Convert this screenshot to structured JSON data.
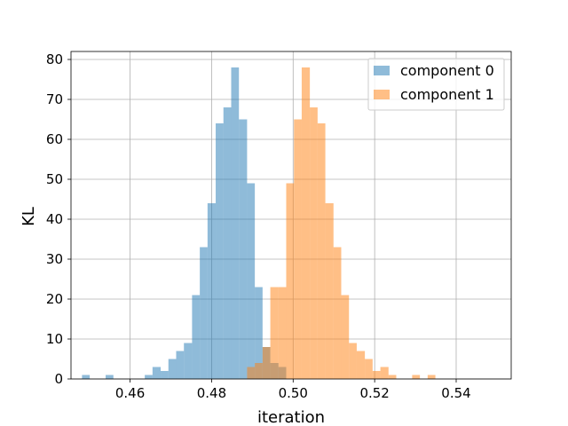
{
  "chart_data": {
    "type": "histogram",
    "title": "",
    "xlabel": "iteration",
    "ylabel": "KL",
    "xlim": [
      0.4455,
      0.5535
    ],
    "ylim": [
      0,
      82
    ],
    "xticks": [
      0.46,
      0.48,
      0.5,
      0.52,
      0.54
    ],
    "xtick_labels": [
      "0.46",
      "0.48",
      "0.50",
      "0.52",
      "0.54"
    ],
    "yticks": [
      0,
      10,
      20,
      30,
      40,
      50,
      60,
      70,
      80
    ],
    "ytick_labels": [
      "0",
      "10",
      "20",
      "30",
      "40",
      "50",
      "60",
      "70",
      "80"
    ],
    "grid": true,
    "legend_position": "top-right",
    "series": [
      {
        "name": "component 0",
        "color": "#1f77b4",
        "alpha": 0.5,
        "bins": [
          [
            0.4482,
            0.4501,
            1
          ],
          [
            0.4501,
            0.452,
            0
          ],
          [
            0.452,
            0.454,
            0
          ],
          [
            0.454,
            0.4559,
            1
          ],
          [
            0.4559,
            0.4578,
            0
          ],
          [
            0.4578,
            0.4597,
            0
          ],
          [
            0.4597,
            0.4617,
            0
          ],
          [
            0.4617,
            0.4636,
            0
          ],
          [
            0.4636,
            0.4655,
            1
          ],
          [
            0.4655,
            0.4675,
            3
          ],
          [
            0.4675,
            0.4694,
            2
          ],
          [
            0.4694,
            0.4713,
            5
          ],
          [
            0.4713,
            0.4732,
            7
          ],
          [
            0.4732,
            0.4752,
            9
          ],
          [
            0.4752,
            0.4771,
            21
          ],
          [
            0.4771,
            0.479,
            33
          ],
          [
            0.479,
            0.481,
            44
          ],
          [
            0.481,
            0.4829,
            64
          ],
          [
            0.4829,
            0.4848,
            68
          ],
          [
            0.4848,
            0.4867,
            78
          ],
          [
            0.4867,
            0.4887,
            65
          ],
          [
            0.4887,
            0.4906,
            49
          ],
          [
            0.4906,
            0.4925,
            23
          ],
          [
            0.4925,
            0.4944,
            8
          ],
          [
            0.4944,
            0.4964,
            4
          ],
          [
            0.4964,
            0.4983,
            3
          ]
        ]
      },
      {
        "name": "component 1",
        "color": "#ff7f0e",
        "alpha": 0.5,
        "bins": [
          [
            0.4887,
            0.4906,
            3
          ],
          [
            0.4906,
            0.4925,
            4
          ],
          [
            0.4925,
            0.4944,
            8
          ],
          [
            0.4944,
            0.4964,
            23
          ],
          [
            0.4964,
            0.4983,
            23
          ],
          [
            0.4983,
            0.5002,
            49
          ],
          [
            0.5002,
            0.5021,
            65
          ],
          [
            0.5021,
            0.5041,
            78
          ],
          [
            0.5041,
            0.506,
            68
          ],
          [
            0.506,
            0.5079,
            64
          ],
          [
            0.5079,
            0.5099,
            44
          ],
          [
            0.5099,
            0.5118,
            33
          ],
          [
            0.5118,
            0.5137,
            21
          ],
          [
            0.5137,
            0.5156,
            9
          ],
          [
            0.5156,
            0.5176,
            7
          ],
          [
            0.5176,
            0.5195,
            5
          ],
          [
            0.5195,
            0.5214,
            2
          ],
          [
            0.5214,
            0.5234,
            3
          ],
          [
            0.5234,
            0.5253,
            1
          ],
          [
            0.5253,
            0.5272,
            0
          ],
          [
            0.5272,
            0.5292,
            0
          ],
          [
            0.5292,
            0.5311,
            1
          ],
          [
            0.5311,
            0.533,
            0
          ],
          [
            0.533,
            0.5349,
            1
          ]
        ]
      }
    ]
  }
}
